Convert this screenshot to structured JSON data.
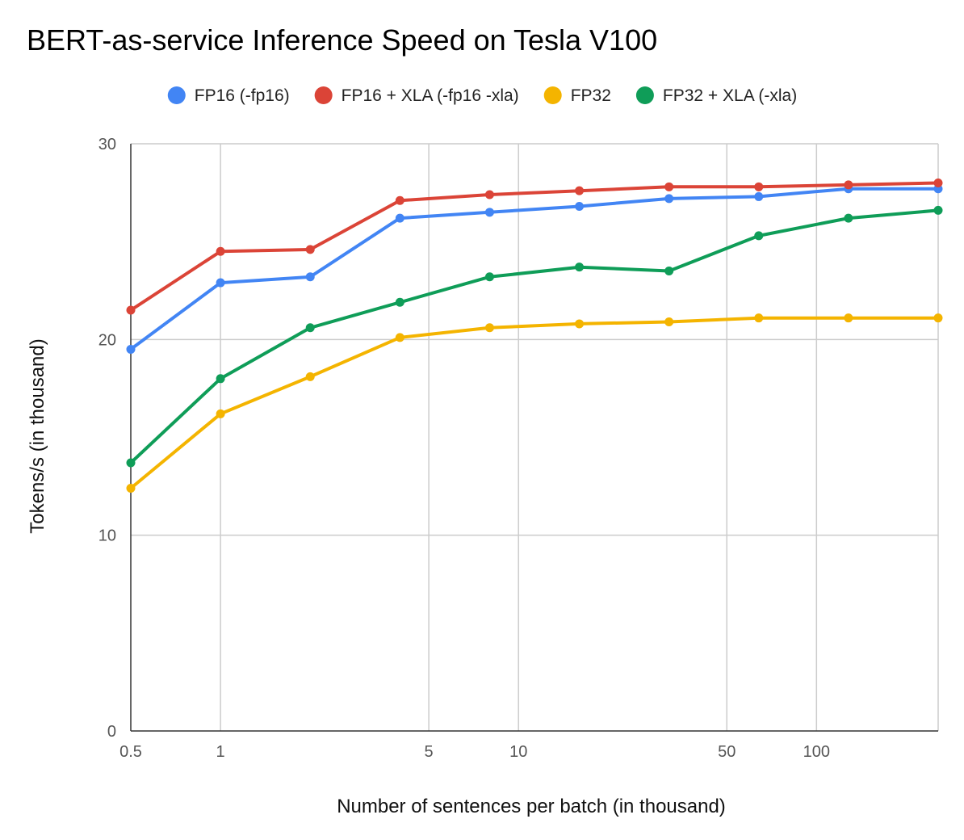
{
  "chart_data": {
    "type": "line",
    "title": "BERT-as-service Inference Speed on Tesla V100",
    "xlabel": "Number of sentences per batch (in thousand)",
    "ylabel": "Tokens/s (in thousand)",
    "x_scale": "log",
    "x_ticks": [
      "0.5",
      "1",
      "5",
      "10",
      "50",
      "100"
    ],
    "x_tick_values": [
      0.5,
      1,
      5,
      10,
      50,
      100
    ],
    "xlim": [
      0.5,
      256
    ],
    "y_ticks": [
      "0",
      "10",
      "20",
      "30"
    ],
    "y_tick_values": [
      0,
      10,
      20,
      30
    ],
    "ylim": [
      0,
      30
    ],
    "grid": true,
    "legend_position": "top",
    "x": [
      0.5,
      1,
      2,
      4,
      8,
      16,
      32,
      64,
      128,
      256
    ],
    "series": [
      {
        "name": "FP16 (-fp16)",
        "color": "#4285f4",
        "values": [
          19.5,
          22.9,
          23.2,
          26.2,
          26.5,
          26.8,
          27.2,
          27.3,
          27.7,
          27.7
        ]
      },
      {
        "name": "FP16 + XLA (-fp16 -xla)",
        "color": "#db4437",
        "values": [
          21.5,
          24.5,
          24.6,
          27.1,
          27.4,
          27.6,
          27.8,
          27.8,
          27.9,
          28.0
        ]
      },
      {
        "name": "FP32",
        "color": "#f4b400",
        "values": [
          12.4,
          16.2,
          18.1,
          20.1,
          20.6,
          20.8,
          20.9,
          21.1,
          21.1,
          21.1
        ]
      },
      {
        "name": "FP32 + XLA (-xla)",
        "color": "#0f9d58",
        "values": [
          13.7,
          18.0,
          20.6,
          21.9,
          23.2,
          23.7,
          23.5,
          25.3,
          26.2,
          26.6
        ]
      }
    ]
  }
}
